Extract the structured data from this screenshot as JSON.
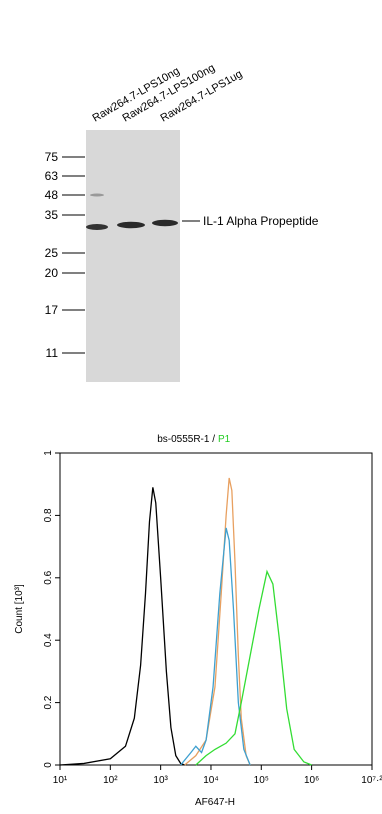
{
  "blot": {
    "lanes": [
      "Raw264.7-LPS10ng",
      "Raw264.7-LPS100ng",
      "Raw264.7-LPS1ug"
    ],
    "markers": [
      "75",
      "63",
      "48",
      "35",
      "25",
      "20",
      "17",
      "11"
    ],
    "annotation": "IL-1 Alpha Propeptide"
  },
  "chart_data": {
    "type": "line",
    "title": "bs-0555R-1 /",
    "gate": "P1",
    "gate_color": "#22cc22",
    "x_label": "AF647-H",
    "y_label": "Count [10³]",
    "xscale": "log",
    "xlim": [
      10,
      15848932
    ],
    "xticks": [
      {
        "value": 10,
        "label": "10¹"
      },
      {
        "value": 100,
        "label": "10²"
      },
      {
        "value": 1000,
        "label": "10³"
      },
      {
        "value": 10000,
        "label": "10⁴"
      },
      {
        "value": 100000,
        "label": "10⁵"
      },
      {
        "value": 1000000,
        "label": "10⁶"
      },
      {
        "value": 15848932,
        "label": "10⁷·²"
      }
    ],
    "ylim": [
      0,
      1
    ],
    "yticks": [
      0,
      0.2,
      0.4,
      0.6,
      0.8,
      1
    ],
    "series": [
      {
        "color": "#000000",
        "x": [
          10,
          30,
          100,
          200,
          300,
          400,
          500,
          600,
          700,
          800,
          1000,
          1300,
          1600,
          2000,
          2500,
          3000
        ],
        "values": [
          0,
          0.005,
          0.02,
          0.06,
          0.15,
          0.32,
          0.55,
          0.78,
          0.89,
          0.84,
          0.6,
          0.3,
          0.12,
          0.03,
          0.005,
          0
        ]
      },
      {
        "color": "#e8a060",
        "x": [
          3000,
          5000,
          8000,
          12000,
          16000,
          20000,
          23000,
          26000,
          30000,
          35000,
          40000,
          50000,
          60000
        ],
        "values": [
          0,
          0.03,
          0.08,
          0.25,
          0.55,
          0.8,
          0.92,
          0.88,
          0.65,
          0.35,
          0.15,
          0.03,
          0
        ]
      },
      {
        "color": "#3ea0d0",
        "x": [
          2500,
          4000,
          5000,
          6500,
          8000,
          11000,
          15000,
          20000,
          23000,
          28000,
          35000,
          45000,
          60000
        ],
        "values": [
          0,
          0.04,
          0.06,
          0.04,
          0.08,
          0.25,
          0.55,
          0.76,
          0.72,
          0.5,
          0.2,
          0.05,
          0
        ]
      },
      {
        "color": "#33dd33",
        "x": [
          5000,
          8000,
          12000,
          20000,
          30000,
          40000,
          60000,
          90000,
          130000,
          170000,
          230000,
          320000,
          450000,
          700000,
          1000000
        ],
        "values": [
          0,
          0.03,
          0.05,
          0.07,
          0.1,
          0.2,
          0.35,
          0.5,
          0.62,
          0.58,
          0.4,
          0.18,
          0.05,
          0.01,
          0
        ]
      }
    ]
  }
}
